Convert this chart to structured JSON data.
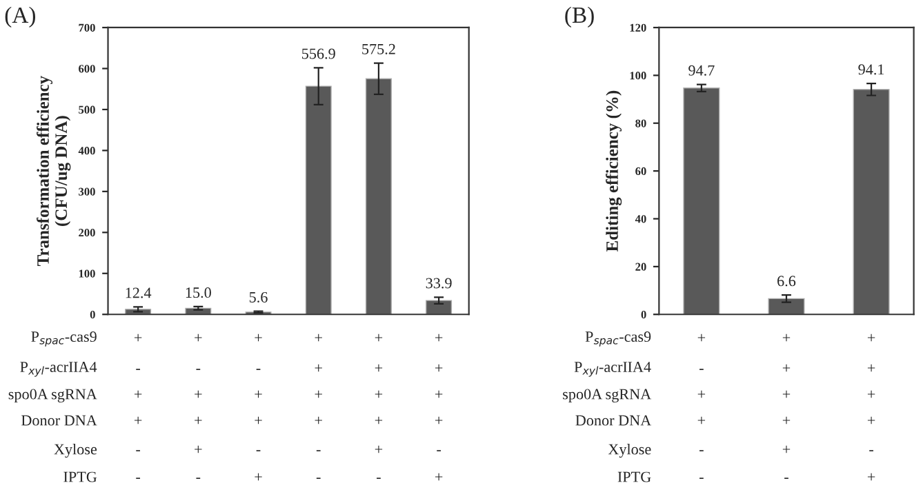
{
  "chart_data": [
    {
      "type": "bar",
      "title": "(A)",
      "ylabel": "Transformation efficiency\n(CFU/ug DNA)",
      "categories": [
        null,
        null,
        null,
        null,
        null,
        null
      ],
      "values": [
        12.4,
        15.0,
        5.6,
        556.9,
        575.2,
        33.9
      ],
      "value_labels": [
        "12.4",
        "15.0",
        "5.6",
        "556.9",
        "575.2",
        "33.9"
      ],
      "errors": [
        6,
        4,
        2,
        45,
        38,
        8
      ],
      "color": "#595959",
      "ylim": [
        0,
        700
      ],
      "yticks": [
        0,
        100,
        200,
        300,
        400,
        500,
        600,
        700
      ],
      "grid": false,
      "tick_labels": "y",
      "annotations": [
        "P$_{spac}$-cas9",
        "+",
        "+",
        "+",
        "+",
        "+",
        "+",
        "P$_{xyl}$-acrIIA4",
        "-",
        "-",
        "-",
        "+",
        "+",
        "+",
        "spo0A sgRNA",
        "+",
        "+",
        "+",
        "+",
        "+",
        "+",
        "Donor DNA",
        "+",
        "+",
        "+",
        "+",
        "+",
        "+",
        "Xylose",
        "-",
        "+",
        "-",
        "-",
        "+",
        "-",
        "IPTG",
        "-",
        "-",
        "+",
        "-",
        "-",
        "+"
      ]
    },
    {
      "type": "bar",
      "title": "(B)",
      "ylabel": "Editing efficiency (%)",
      "categories": [
        null,
        null,
        null
      ],
      "values": [
        94.7,
        6.6,
        94.1
      ],
      "value_labels": [
        "94.7",
        "6.6",
        "94.1"
      ],
      "errors": [
        1.5,
        1.5,
        2.5
      ],
      "color": "#595959",
      "ylim": [
        0,
        120
      ],
      "yticks": [
        0,
        20,
        40,
        60,
        80,
        100,
        120
      ],
      "grid": false,
      "tick_labels": "y",
      "annotations": [
        "P$_{spac}$-cas9",
        "+",
        "+",
        "+",
        "P$_{xyl}$-acrIIA4",
        "-",
        "+",
        "+",
        "spo0A sgRNA",
        "+",
        "+",
        "+",
        "Donor DNA",
        "+",
        "+",
        "+",
        "Xylose",
        "-",
        "+",
        "-",
        "IPTG",
        "-",
        "-",
        "+"
      ]
    }
  ]
}
